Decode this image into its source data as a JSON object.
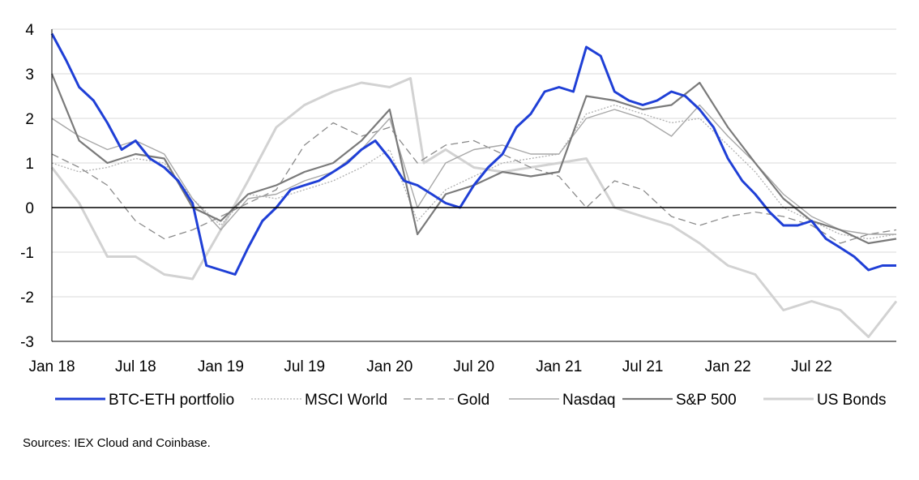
{
  "chart_data": {
    "type": "line",
    "title": "",
    "xlabel": "",
    "ylabel": "",
    "ylim": [
      -3,
      4
    ],
    "yticks": [
      4,
      3,
      2,
      1,
      0,
      -1,
      -2,
      -3
    ],
    "xticks": [
      "Jan 18",
      "Jul 18",
      "Jan 19",
      "Jul 19",
      "Jan 20",
      "Jul 20",
      "Jan 21",
      "Jul 21",
      "Jan 22",
      "Jul 22"
    ],
    "xlim": [
      "2018-01-01",
      "2022-12-31"
    ],
    "grid": "horizontal",
    "legend_position": "bottom",
    "series": [
      {
        "name": "BTC-ETH portfolio",
        "color": "#1f3fd6",
        "style": "solid-thick",
        "x": [
          "2018-01-01",
          "2018-02-01",
          "2018-03-01",
          "2018-04-01",
          "2018-05-01",
          "2018-06-01",
          "2018-07-01",
          "2018-08-01",
          "2018-09-01",
          "2018-10-01",
          "2018-11-01",
          "2018-12-01",
          "2019-01-01",
          "2019-02-01",
          "2019-03-01",
          "2019-04-01",
          "2019-05-01",
          "2019-06-01",
          "2019-07-01",
          "2019-08-01",
          "2019-09-01",
          "2019-10-01",
          "2019-11-01",
          "2019-12-01",
          "2020-01-01",
          "2020-02-01",
          "2020-03-01",
          "2020-04-01",
          "2020-05-01",
          "2020-06-01",
          "2020-07-01",
          "2020-08-01",
          "2020-09-01",
          "2020-10-01",
          "2020-11-01",
          "2020-12-01",
          "2021-01-01",
          "2021-02-01",
          "2021-03-01",
          "2021-04-01",
          "2021-05-01",
          "2021-06-01",
          "2021-07-01",
          "2021-08-01",
          "2021-09-01",
          "2021-10-01",
          "2021-11-01",
          "2021-12-01",
          "2022-01-01",
          "2022-02-01",
          "2022-03-01",
          "2022-04-01",
          "2022-05-01",
          "2022-06-01",
          "2022-07-01",
          "2022-08-01",
          "2022-09-01",
          "2022-10-01",
          "2022-11-01",
          "2022-12-01",
          "2022-12-31"
        ],
        "values": [
          3.9,
          3.3,
          2.7,
          2.4,
          1.9,
          1.3,
          1.5,
          1.1,
          0.9,
          0.6,
          0.1,
          -1.3,
          -1.4,
          -1.5,
          -0.9,
          -0.3,
          0.0,
          0.4,
          0.5,
          0.6,
          0.8,
          1.0,
          1.3,
          1.5,
          1.1,
          0.6,
          0.5,
          0.3,
          0.1,
          0.0,
          0.5,
          0.9,
          1.2,
          1.8,
          2.1,
          2.6,
          2.7,
          2.6,
          3.6,
          3.4,
          2.6,
          2.4,
          2.3,
          2.4,
          2.6,
          2.5,
          2.2,
          1.8,
          1.1,
          0.6,
          0.3,
          -0.1,
          -0.4,
          -0.4,
          -0.3,
          -0.7,
          -0.9,
          -1.1,
          -1.4,
          -1.3,
          -1.3
        ]
      },
      {
        "name": "MSCI World",
        "color": "#b0b0b0",
        "style": "dotted",
        "x": [
          "2018-01-01",
          "2018-03-01",
          "2018-05-01",
          "2018-07-01",
          "2018-09-01",
          "2018-11-01",
          "2019-01-01",
          "2019-03-01",
          "2019-05-01",
          "2019-07-01",
          "2019-09-01",
          "2019-11-01",
          "2020-01-01",
          "2020-03-01",
          "2020-05-01",
          "2020-07-01",
          "2020-09-01",
          "2020-11-01",
          "2021-01-01",
          "2021-03-01",
          "2021-05-01",
          "2021-07-01",
          "2021-09-01",
          "2021-11-01",
          "2022-01-01",
          "2022-03-01",
          "2022-05-01",
          "2022-07-01",
          "2022-09-01",
          "2022-11-01",
          "2022-12-31"
        ],
        "values": [
          1.0,
          0.8,
          0.9,
          1.1,
          1.0,
          0.2,
          -0.4,
          0.3,
          0.2,
          0.4,
          0.6,
          0.9,
          1.3,
          -0.3,
          0.4,
          0.7,
          1.0,
          1.1,
          1.2,
          2.1,
          2.3,
          2.1,
          1.9,
          2.0,
          1.4,
          0.8,
          0.0,
          -0.3,
          -0.6,
          -0.7,
          -0.6
        ]
      },
      {
        "name": "Gold",
        "color": "#8a8a8a",
        "style": "dashed",
        "x": [
          "2018-01-01",
          "2018-03-01",
          "2018-05-01",
          "2018-07-01",
          "2018-09-01",
          "2018-11-01",
          "2019-01-01",
          "2019-03-01",
          "2019-05-01",
          "2019-07-01",
          "2019-09-01",
          "2019-11-01",
          "2020-01-01",
          "2020-03-01",
          "2020-05-01",
          "2020-07-01",
          "2020-09-01",
          "2020-11-01",
          "2021-01-01",
          "2021-03-01",
          "2021-05-01",
          "2021-07-01",
          "2021-09-01",
          "2021-11-01",
          "2022-01-01",
          "2022-03-01",
          "2022-05-01",
          "2022-07-01",
          "2022-09-01",
          "2022-11-01",
          "2022-12-31"
        ],
        "values": [
          1.2,
          0.9,
          0.5,
          -0.3,
          -0.7,
          -0.5,
          -0.2,
          0.1,
          0.4,
          1.4,
          1.9,
          1.6,
          1.8,
          1.0,
          1.4,
          1.5,
          1.2,
          0.9,
          0.7,
          0.0,
          0.6,
          0.4,
          -0.2,
          -0.4,
          -0.2,
          -0.1,
          -0.2,
          -0.4,
          -0.8,
          -0.6,
          -0.5
        ]
      },
      {
        "name": "Nasdaq",
        "color": "#a8a8a8",
        "style": "solid-thin",
        "x": [
          "2018-01-01",
          "2018-03-01",
          "2018-05-01",
          "2018-07-01",
          "2018-09-01",
          "2018-11-01",
          "2019-01-01",
          "2019-03-01",
          "2019-05-01",
          "2019-07-01",
          "2019-09-01",
          "2019-11-01",
          "2020-01-01",
          "2020-03-01",
          "2020-05-01",
          "2020-07-01",
          "2020-09-01",
          "2020-11-01",
          "2021-01-01",
          "2021-03-01",
          "2021-05-01",
          "2021-07-01",
          "2021-09-01",
          "2021-11-01",
          "2022-01-01",
          "2022-03-01",
          "2022-05-01",
          "2022-07-01",
          "2022-09-01",
          "2022-11-01",
          "2022-12-31"
        ],
        "values": [
          2.0,
          1.6,
          1.3,
          1.5,
          1.2,
          0.2,
          -0.5,
          0.2,
          0.3,
          0.6,
          0.8,
          1.3,
          2.0,
          0.0,
          1.0,
          1.3,
          1.4,
          1.2,
          1.2,
          2.0,
          2.2,
          2.0,
          1.6,
          2.3,
          1.6,
          1.0,
          0.3,
          -0.2,
          -0.5,
          -0.6,
          -0.6
        ]
      },
      {
        "name": "S&P 500",
        "color": "#7a7a7a",
        "style": "solid-medium",
        "x": [
          "2018-01-01",
          "2018-03-01",
          "2018-05-01",
          "2018-07-01",
          "2018-09-01",
          "2018-11-01",
          "2019-01-01",
          "2019-03-01",
          "2019-05-01",
          "2019-07-01",
          "2019-09-01",
          "2019-11-01",
          "2020-01-01",
          "2020-03-01",
          "2020-05-01",
          "2020-07-01",
          "2020-09-01",
          "2020-11-01",
          "2021-01-01",
          "2021-03-01",
          "2021-05-01",
          "2021-07-01",
          "2021-09-01",
          "2021-11-01",
          "2022-01-01",
          "2022-03-01",
          "2022-05-01",
          "2022-07-01",
          "2022-09-01",
          "2022-11-01",
          "2022-12-31"
        ],
        "values": [
          3.0,
          1.5,
          1.0,
          1.2,
          1.1,
          0.0,
          -0.3,
          0.3,
          0.5,
          0.8,
          1.0,
          1.5,
          2.2,
          -0.6,
          0.3,
          0.5,
          0.8,
          0.7,
          0.8,
          2.5,
          2.4,
          2.2,
          2.3,
          2.8,
          1.8,
          1.0,
          0.2,
          -0.3,
          -0.5,
          -0.8,
          -0.7
        ]
      },
      {
        "name": "US Bonds",
        "color": "#d2d2d2",
        "style": "solid-thick",
        "x": [
          "2018-01-01",
          "2018-03-01",
          "2018-05-01",
          "2018-07-01",
          "2018-09-01",
          "2018-11-01",
          "2019-01-01",
          "2019-03-01",
          "2019-05-01",
          "2019-07-01",
          "2019-09-01",
          "2019-11-01",
          "2020-01-01",
          "2020-02-15",
          "2020-03-15",
          "2020-05-01",
          "2020-07-01",
          "2020-09-01",
          "2020-11-01",
          "2021-01-01",
          "2021-03-01",
          "2021-05-01",
          "2021-07-01",
          "2021-09-01",
          "2021-11-01",
          "2022-01-01",
          "2022-03-01",
          "2022-05-01",
          "2022-07-01",
          "2022-09-01",
          "2022-11-01",
          "2022-12-31"
        ],
        "values": [
          0.9,
          0.1,
          -1.1,
          -1.1,
          -1.5,
          -1.6,
          -0.5,
          0.6,
          1.8,
          2.3,
          2.6,
          2.8,
          2.7,
          2.9,
          1.0,
          1.3,
          0.9,
          0.8,
          0.9,
          1.0,
          1.1,
          0.0,
          -0.2,
          -0.4,
          -0.8,
          -1.3,
          -1.5,
          -2.3,
          -2.1,
          -2.3,
          -2.9,
          -2.1
        ]
      }
    ]
  },
  "source_note": "Sources: IEX Cloud and Coinbase."
}
